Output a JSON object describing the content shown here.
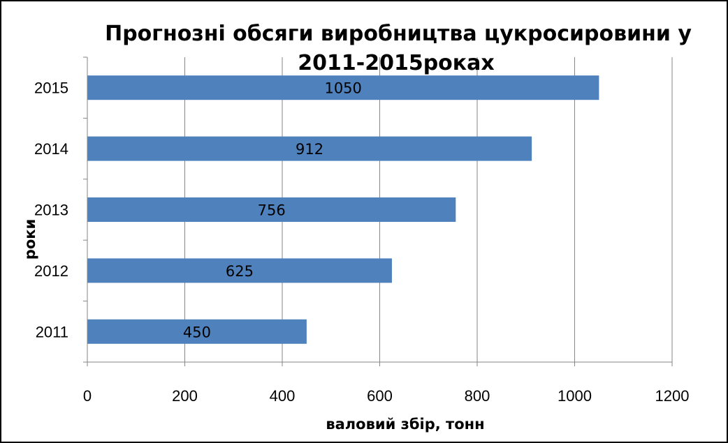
{
  "chart_data": {
    "type": "bar",
    "orientation": "horizontal",
    "title_lines": [
      "Прогнозні обсяги виробництва цукросировини у",
      "2011-2015роках"
    ],
    "xlabel": "валовий збір, тонн",
    "ylabel": "роки",
    "categories": [
      "2011",
      "2012",
      "2013",
      "2014",
      "2015"
    ],
    "values": [
      450,
      625,
      756,
      912,
      1050
    ],
    "xlim": [
      0,
      1200
    ],
    "xticks": [
      0,
      200,
      400,
      600,
      800,
      1000,
      1200
    ],
    "grid": "vertical",
    "legend": "none",
    "colors": {
      "bar": "#4F81BD",
      "grid": "#868686"
    }
  }
}
